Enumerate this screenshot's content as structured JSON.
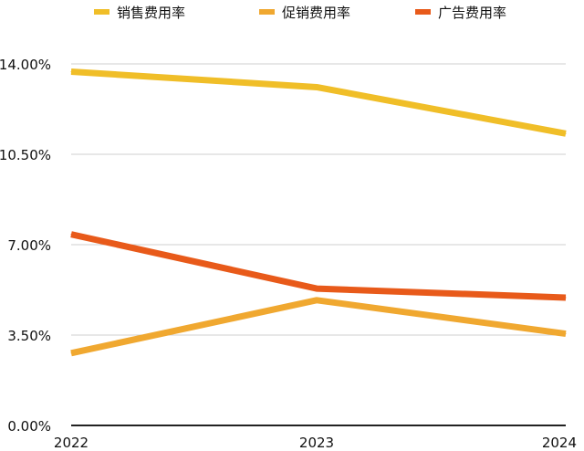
{
  "chart_data": {
    "type": "line",
    "categories": [
      "2022",
      "2023",
      "2024"
    ],
    "y_ticks": [
      "0.00%",
      "3.50%",
      "7.00%",
      "10.50%",
      "14.00%"
    ],
    "ylim": [
      0,
      14
    ],
    "legend_position": "top",
    "grid": true,
    "series": [
      {
        "name": "销售费用率",
        "color": "#f0be28",
        "values": [
          13.7,
          13.1,
          11.3
        ]
      },
      {
        "name": "促销费用率",
        "color": "#f0a830",
        "values": [
          2.8,
          4.85,
          3.55
        ]
      },
      {
        "name": "广告费用率",
        "color": "#e85a1a",
        "values": [
          7.4,
          5.3,
          4.95
        ]
      }
    ]
  }
}
